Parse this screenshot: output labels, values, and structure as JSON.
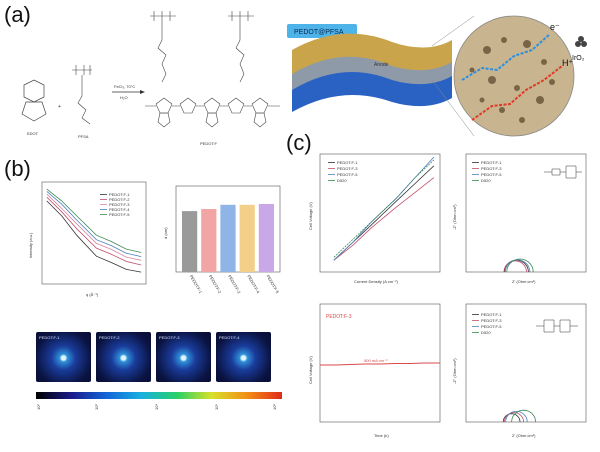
{
  "panel_labels": {
    "a": "(a)",
    "b": "(b)",
    "c": "(c)"
  },
  "panel_a": {
    "reactant_1": "EDOT",
    "reactant_2": "PFSA",
    "plus": "+",
    "conditions_1": "FeCl₃, 70°C",
    "conditions_2": "H₂O",
    "product": "PEDOT:F",
    "schematic_banner": "PEDOT@PFSA",
    "layer_label": "Anode",
    "electron": "e⁻",
    "proton": "H⁺",
    "catalyst": "IrO₂"
  },
  "panel_b": {
    "legend": [
      "PEDOT:F-1",
      "PEDOT:F-2",
      "PEDOT:F-3",
      "PEDOT:F-4",
      "PEDOT:F-5"
    ],
    "saxs_labels": [
      "PEDOT:F-1",
      "PEDOT:F-2",
      "PEDOT:F-3",
      "PEDOT:F-4",
      "PEDOT:F-5"
    ],
    "colorbar_ticks": [
      "10²",
      "10³",
      "10⁴",
      "10⁵",
      "10⁶"
    ]
  },
  "panel_c": {
    "iv_legend": [
      "PEDOT:F-1",
      "PEDOT:F-3",
      "PEDOT:F-5",
      "D520"
    ],
    "eis_legend": [
      "PEDOT:F-1",
      "PEDOT:F-3",
      "PEDOT:F-5",
      "D520"
    ],
    "stab_legend": "PEDOT:F-3",
    "stab_annotation": "500 mA cm⁻²",
    "eis2_legend": [
      "PEDOT:F-1",
      "PEDOT:F-3",
      "PEDOT:F-5",
      "D520"
    ]
  },
  "colors": {
    "pedot_f1": "#333333",
    "pedot_f2": "#c0506a",
    "pedot_f3": "#d986a0",
    "pedot_f4": "#4d7fbf",
    "pedot_f5": "#3a8a55",
    "bar_1": "#9a9a9a",
    "bar_2": "#f2a5a5",
    "bar_3": "#8fb4e8",
    "bar_4": "#f2d08a",
    "bar_5": "#c9a8e8",
    "stab_line": "#d84a4a"
  },
  "chart_data": [
    {
      "type": "line",
      "panel": "b-left",
      "scale": "log-log",
      "series": [
        {
          "name": "PEDOT:F-1",
          "x": [
            0.005,
            0.01,
            0.02,
            0.05,
            0.1,
            0.2,
            0.4
          ],
          "y": [
            90,
            40,
            14,
            4.5,
            3.2,
            2.2,
            1.9
          ]
        },
        {
          "name": "PEDOT:F-2",
          "x": [
            0.005,
            0.01,
            0.02,
            0.05,
            0.1,
            0.2,
            0.4
          ],
          "y": [
            110,
            50,
            20,
            7,
            5,
            3.4,
            2.8
          ]
        },
        {
          "name": "PEDOT:F-3",
          "x": [
            0.005,
            0.01,
            0.02,
            0.05,
            0.1,
            0.2,
            0.4
          ],
          "y": [
            130,
            60,
            26,
            9,
            6.5,
            4.3,
            3.6
          ]
        },
        {
          "name": "PEDOT:F-4",
          "x": [
            0.005,
            0.01,
            0.02,
            0.05,
            0.1,
            0.2,
            0.4
          ],
          "y": [
            150,
            75,
            32,
            11,
            8,
            5.3,
            4.4
          ]
        },
        {
          "name": "PEDOT:F-5",
          "x": [
            0.005,
            0.01,
            0.02,
            0.05,
            0.1,
            0.2,
            0.4
          ],
          "y": [
            170,
            90,
            40,
            14,
            10,
            6.6,
            5.5
          ]
        }
      ]
    },
    {
      "type": "bar",
      "panel": "b-right",
      "categories": [
        "PEDOT:F-1",
        "PEDOT:F-2",
        "PEDOT:F-3",
        "PEDOT:F-4",
        "PEDOT:F-5"
      ],
      "values": [
        1.45,
        1.5,
        1.6,
        1.6,
        1.62
      ],
      "ylim": [
        0,
        2
      ]
    },
    {
      "type": "line",
      "panel": "c-iv",
      "xscale": "log",
      "series": [
        {
          "name": "PEDOT:F-1",
          "x": [
            0.05,
            0.1,
            0.2,
            0.5,
            1,
            2
          ],
          "y": [
            1.44,
            1.5,
            1.56,
            1.64,
            1.7,
            1.76
          ]
        },
        {
          "name": "PEDOT:F-3",
          "x": [
            0.05,
            0.1,
            0.2,
            0.5,
            1,
            2
          ],
          "y": [
            1.44,
            1.49,
            1.55,
            1.62,
            1.67,
            1.72
          ]
        },
        {
          "name": "PEDOT:F-5",
          "x": [
            0.05,
            0.1,
            0.2,
            0.5,
            1,
            2
          ],
          "y": [
            1.44,
            1.5,
            1.57,
            1.65,
            1.72,
            1.79
          ]
        },
        {
          "name": "D520",
          "x": [
            0.05,
            0.1,
            0.2,
            0.5,
            1,
            2
          ],
          "y": [
            1.45,
            1.51,
            1.57,
            1.65,
            1.72,
            1.78
          ]
        }
      ],
      "xlim": [
        0.03,
        2.5
      ],
      "ylim": [
        1.4,
        1.8
      ]
    },
    {
      "type": "line",
      "panel": "c-eis",
      "series": [
        {
          "name": "PEDOT:F-1",
          "center": 0.21,
          "radius": 0.05
        },
        {
          "name": "PEDOT:F-3",
          "center": 0.205,
          "radius": 0.047
        },
        {
          "name": "PEDOT:F-5",
          "center": 0.215,
          "radius": 0.051
        },
        {
          "name": "D520",
          "center": 0.225,
          "radius": 0.055
        }
      ],
      "xlim": [
        0,
        0.5
      ],
      "ylim": [
        0,
        0.5
      ]
    },
    {
      "type": "line",
      "panel": "c-stability",
      "series": [
        {
          "name": "PEDOT:F-3",
          "x": [
            0,
            500,
            1000,
            1500,
            2000,
            2500,
            3000,
            3500,
            4000
          ],
          "y": [
            1.98,
            1.98,
            1.985,
            1.99,
            1.99,
            1.995,
            1.995,
            2.0,
            2.0
          ]
        }
      ],
      "xlim": [
        0,
        4000
      ],
      "ylim": [
        1.4,
        2.6
      ]
    },
    {
      "type": "line",
      "panel": "c-eis2",
      "series": [
        {
          "name": "PEDOT:F-1",
          "center": 0.19,
          "radius": 0.035
        },
        {
          "name": "PEDOT:F-3",
          "center": 0.2,
          "radius": 0.04
        },
        {
          "name": "PEDOT:F-5",
          "center": 0.21,
          "radius": 0.045
        },
        {
          "name": "D520",
          "center": 0.24,
          "radius": 0.05
        }
      ],
      "xlim": [
        0,
        0.5
      ],
      "ylim": [
        0,
        0.5
      ]
    }
  ]
}
